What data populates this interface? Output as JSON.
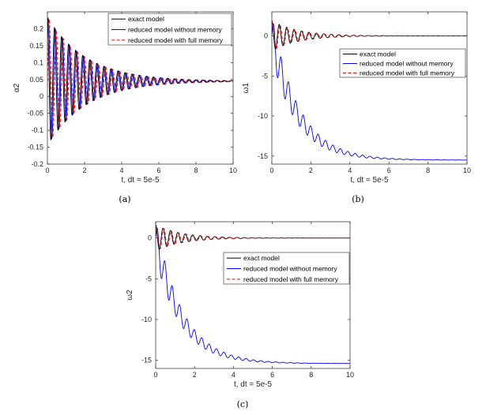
{
  "legend": {
    "entries": [
      "exact model",
      "reduced model without memory",
      "reduced model with full memory"
    ],
    "colors": [
      "#000000",
      "#0000ff",
      "#ff0000"
    ]
  },
  "chart_data": [
    {
      "id": "a",
      "type": "line",
      "caption": "(a)",
      "xlabel": "t, dt = 5e-5",
      "ylabel": "α2",
      "xlim": [
        0,
        10
      ],
      "ylim": [
        -0.2,
        0.25
      ],
      "xticks": [
        0,
        2,
        4,
        6,
        8,
        10
      ],
      "yticks": [
        -0.2,
        -0.15,
        -0.1,
        -0.05,
        0,
        0.05,
        0.1,
        0.15,
        0.2
      ],
      "legend_position": "top-right",
      "grid": false,
      "series": [
        {
          "name": "exact model",
          "style": "solid",
          "color": "#000000",
          "baseline": 0.045,
          "amplitude": 0.19,
          "decay": 0.48,
          "period": 0.38,
          "phase": 0.0
        },
        {
          "name": "reduced model without memory",
          "style": "solid",
          "color": "#0000ff",
          "baseline": 0.045,
          "amplitude": 0.19,
          "decay": 0.48,
          "period": 0.38,
          "phase": 0.05
        },
        {
          "name": "reduced model with full memory",
          "style": "dashed",
          "color": "#ff0000",
          "baseline": 0.045,
          "amplitude": 0.19,
          "decay": 0.48,
          "period": 0.38,
          "phase": 0.1
        }
      ]
    },
    {
      "id": "b",
      "type": "line",
      "caption": "(b)",
      "xlabel": "t, dt = 5e-5",
      "ylabel": "ω1",
      "xlim": [
        0,
        10
      ],
      "ylim": [
        -16,
        3
      ],
      "xticks": [
        0,
        2,
        4,
        6,
        8,
        10
      ],
      "yticks": [
        -15,
        -10,
        -5,
        0
      ],
      "legend_position": "center-right",
      "grid": false,
      "series": [
        {
          "name": "exact model",
          "style": "solid",
          "color": "#000000",
          "baseline": 0,
          "amplitude": 1.9,
          "decay": 0.75,
          "period": 0.38,
          "phase": 0.0
        },
        {
          "name": "reduced model without memory",
          "style": "solid",
          "color": "#0000ff",
          "start": 0,
          "end": -15.5,
          "drift_rate": 0.75,
          "amplitude": 2.6,
          "decay": 0.6,
          "period": 0.38
        },
        {
          "name": "reduced model with full memory",
          "style": "dashed",
          "color": "#ff0000",
          "baseline": 0,
          "amplitude": 1.9,
          "decay": 0.75,
          "period": 0.38,
          "phase": 0.04
        }
      ]
    },
    {
      "id": "c",
      "type": "line",
      "caption": "(c)",
      "xlabel": "t, dt = 5e-5",
      "ylabel": "ω2",
      "xlim": [
        0,
        10
      ],
      "ylim": [
        -16,
        2
      ],
      "xticks": [
        0,
        2,
        4,
        6,
        8,
        10
      ],
      "yticks": [
        -15,
        -10,
        -5,
        0
      ],
      "legend_position": "center-right",
      "grid": false,
      "series": [
        {
          "name": "exact model",
          "style": "solid",
          "color": "#000000",
          "baseline": 0,
          "amplitude": 1.6,
          "decay": 0.75,
          "period": 0.38,
          "phase": 0.0
        },
        {
          "name": "reduced model without memory",
          "style": "solid",
          "color": "#0000ff",
          "start": 0,
          "end": -15.4,
          "drift_rate": 0.75,
          "amplitude": 2.3,
          "decay": 0.6,
          "period": 0.38
        },
        {
          "name": "reduced model with full memory",
          "style": "dashed",
          "color": "#ff0000",
          "baseline": 0,
          "amplitude": 1.6,
          "decay": 0.75,
          "period": 0.38,
          "phase": 0.04
        }
      ]
    }
  ]
}
